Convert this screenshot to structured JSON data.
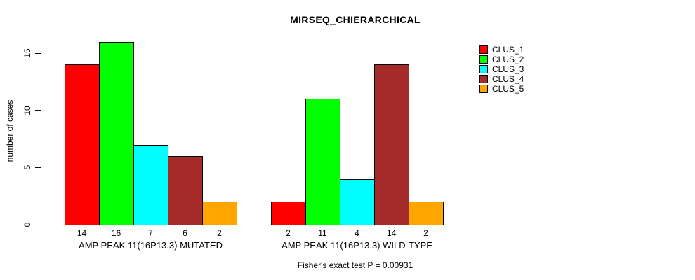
{
  "chart_data": {
    "type": "bar",
    "title": "MIRSEQ_CHIERARCHICAL",
    "ylabel": "number of cases",
    "yticks": [
      0,
      5,
      10,
      15
    ],
    "ylim": [
      0,
      16
    ],
    "grid": false,
    "legend_position": "right",
    "series": [
      {
        "name": "CLUS_1",
        "color": "#FF0000"
      },
      {
        "name": "CLUS_2",
        "color": "#00FF00"
      },
      {
        "name": "CLUS_3",
        "color": "#00FFFF"
      },
      {
        "name": "CLUS_4",
        "color": "#A52A2A"
      },
      {
        "name": "CLUS_5",
        "color": "#FFA500"
      }
    ],
    "groups": [
      {
        "label": "AMP PEAK 11(16P13.3) MUTATED",
        "values": [
          14,
          16,
          7,
          6,
          2
        ]
      },
      {
        "label": "AMP PEAK 11(16P13.3) WILD-TYPE",
        "values": [
          2,
          11,
          4,
          14,
          2
        ]
      }
    ],
    "bar_value_labels_shown": true,
    "footnote": "Fisher's exact test P = 0.00931"
  }
}
